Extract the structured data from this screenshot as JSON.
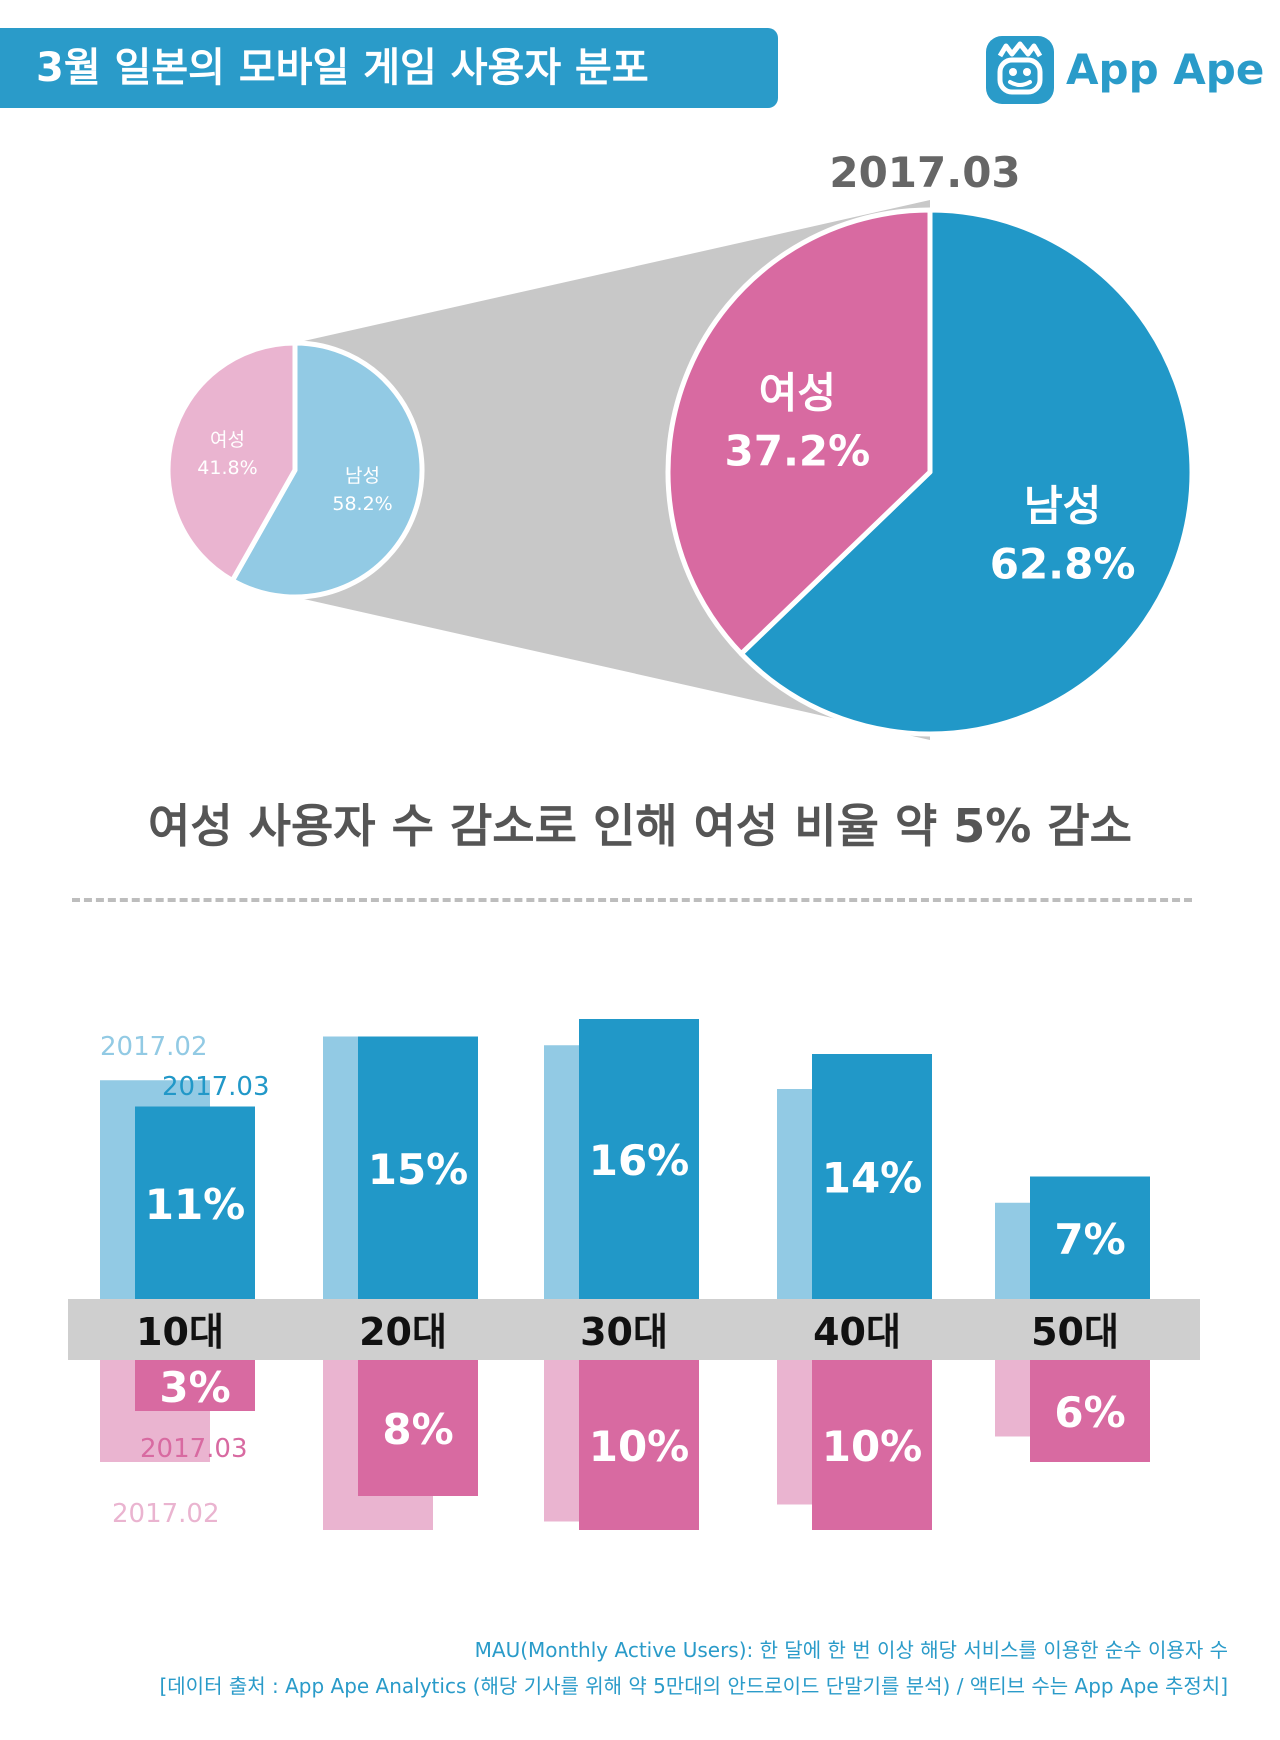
{
  "header": {
    "title": "3월 일본의 모바일 게임 사용자 분포",
    "logo_text": "App Ape",
    "logo_icon": "ape-face-icon"
  },
  "colors": {
    "blue": "#2198c8",
    "blue_light": "#92cae4",
    "pink": "#d86aa1",
    "pink_light": "#eab4d0",
    "gray_connector": "#c8c8c8",
    "axis_band": "#cfcfcf"
  },
  "chart_data": [
    {
      "type": "pie",
      "title": "",
      "slices": [
        {
          "label": "남성",
          "value": 58.2,
          "display": "58.2%"
        },
        {
          "label": "여성",
          "value": 41.8,
          "display": "41.8%"
        }
      ]
    },
    {
      "type": "pie",
      "title": "2017.03",
      "slices": [
        {
          "label": "남성",
          "value": 62.8,
          "display": "62.8%"
        },
        {
          "label": "여성",
          "value": 37.2,
          "display": "37.2%"
        }
      ]
    },
    {
      "type": "bar",
      "categories": [
        "10대",
        "20대",
        "30대",
        "40대",
        "50대"
      ],
      "series": [
        {
          "name": "2017.02",
          "group": "남성",
          "values": [
            12.5,
            15,
            14.5,
            12,
            5.5
          ]
        },
        {
          "name": "2017.03",
          "group": "남성",
          "values": [
            11,
            15,
            16,
            14,
            7
          ],
          "labels": [
            "11%",
            "15%",
            "16%",
            "14%",
            "7%"
          ]
        },
        {
          "name": "2017.02",
          "group": "여성",
          "values": [
            6,
            10,
            9.5,
            8.5,
            4.5
          ]
        },
        {
          "name": "2017.03",
          "group": "여성",
          "values": [
            3,
            8,
            10,
            10,
            6
          ],
          "labels": [
            "3%",
            "8%",
            "10%",
            "10%",
            "6%"
          ]
        }
      ]
    }
  ],
  "headline": "여성 사용자 수 감소로 인해 여성 비율 약 5% 감소",
  "footer": {
    "line1": "MAU(Monthly Active Users): 한 달에 한 번 이상 해당 서비스를 이용한 순수 이용자 수",
    "line2": "[데이터 출처 : App Ape Analytics (해당 기사를 위해 약 5만대의 안드로이드 단말기를 분석) / 액티브 수는 App Ape 추정치]"
  }
}
